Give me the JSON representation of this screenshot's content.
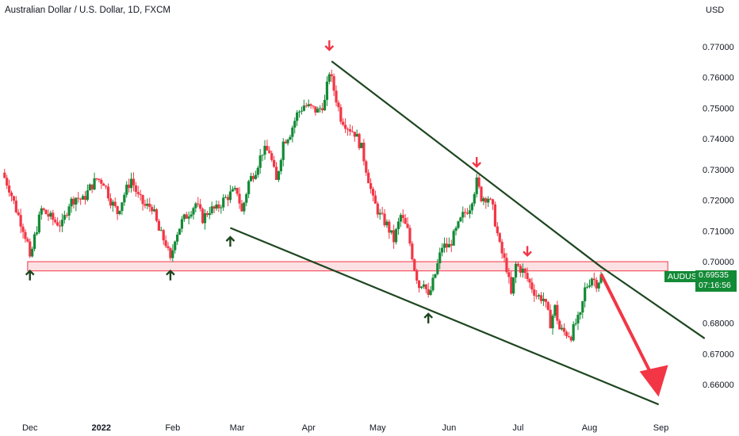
{
  "header": {
    "title": "Australian Dollar / U.S. Dollar, 1D, FXCM",
    "currency": "USD"
  },
  "price_tag": {
    "symbol": "AUDUSD",
    "price": "0.69535",
    "countdown": "07:16:56"
  },
  "colors": {
    "up": "#138a36",
    "down": "#f23645",
    "trendline": "#1e4620",
    "zone_fill": "#f8c9cc",
    "zone_stroke": "#f23645"
  },
  "chart_data": {
    "type": "candlestick",
    "title": "Australian Dollar / U.S. Dollar, 1D, FXCM",
    "y_axis_label": "USD",
    "ylim": [
      0.6515,
      0.7815
    ],
    "y_ticks": [
      "0.77000",
      "0.76000",
      "0.75000",
      "0.74000",
      "0.73000",
      "0.72000",
      "0.71000",
      "0.70000",
      "0.68000",
      "0.67000",
      "0.66000"
    ],
    "x_ticks": [
      "Dec",
      "2022",
      "Feb",
      "Mar",
      "Apr",
      "May",
      "Jun",
      "Jul",
      "Aug",
      "Sep"
    ],
    "x_tick_days": [
      0,
      31,
      62,
      90,
      121,
      151,
      182,
      212,
      243,
      274
    ],
    "x_range_days": [
      -13,
      290
    ],
    "close_series": [
      [
        -12,
        0.729
      ],
      [
        -9,
        0.724
      ],
      [
        -6,
        0.717
      ],
      [
        -3,
        0.711
      ],
      [
        -1,
        0.706
      ],
      [
        0,
        0.7
      ],
      [
        2,
        0.708
      ],
      [
        5,
        0.717
      ],
      [
        8,
        0.715
      ],
      [
        11,
        0.713
      ],
      [
        14,
        0.712
      ],
      [
        17,
        0.719
      ],
      [
        20,
        0.721
      ],
      [
        23,
        0.72
      ],
      [
        26,
        0.724
      ],
      [
        29,
        0.727
      ],
      [
        32,
        0.726
      ],
      [
        35,
        0.72
      ],
      [
        38,
        0.716
      ],
      [
        41,
        0.722
      ],
      [
        44,
        0.727
      ],
      [
        47,
        0.721
      ],
      [
        50,
        0.718
      ],
      [
        53,
        0.718
      ],
      [
        56,
        0.71
      ],
      [
        59,
        0.706
      ],
      [
        61,
        0.7
      ],
      [
        63,
        0.708
      ],
      [
        66,
        0.713
      ],
      [
        69,
        0.716
      ],
      [
        72,
        0.719
      ],
      [
        75,
        0.714
      ],
      [
        78,
        0.717
      ],
      [
        81,
        0.717
      ],
      [
        84,
        0.72
      ],
      [
        87,
        0.722
      ],
      [
        90,
        0.723
      ],
      [
        92,
        0.716
      ],
      [
        95,
        0.726
      ],
      [
        98,
        0.73
      ],
      [
        101,
        0.736
      ],
      [
        104,
        0.736
      ],
      [
        107,
        0.726
      ],
      [
        110,
        0.739
      ],
      [
        113,
        0.742
      ],
      [
        116,
        0.748
      ],
      [
        119,
        0.751
      ],
      [
        122,
        0.75
      ],
      [
        125,
        0.749
      ],
      [
        128,
        0.752
      ],
      [
        130,
        0.762
      ],
      [
        132,
        0.756
      ],
      [
        135,
        0.747
      ],
      [
        138,
        0.744
      ],
      [
        141,
        0.742
      ],
      [
        144,
        0.737
      ],
      [
        147,
        0.727
      ],
      [
        149,
        0.72
      ],
      [
        152,
        0.715
      ],
      [
        155,
        0.712
      ],
      [
        158,
        0.707
      ],
      [
        161,
        0.715
      ],
      [
        164,
        0.71
      ],
      [
        167,
        0.698
      ],
      [
        169,
        0.692
      ],
      [
        171,
        0.694
      ],
      [
        173,
        0.688
      ],
      [
        176,
        0.696
      ],
      [
        179,
        0.705
      ],
      [
        182,
        0.705
      ],
      [
        185,
        0.71
      ],
      [
        188,
        0.715
      ],
      [
        191,
        0.718
      ],
      [
        194,
        0.726
      ],
      [
        196,
        0.721
      ],
      [
        199,
        0.721
      ],
      [
        201,
        0.717
      ],
      [
        204,
        0.705
      ],
      [
        207,
        0.698
      ],
      [
        209,
        0.689
      ],
      [
        211,
        0.699
      ],
      [
        214,
        0.697
      ],
      [
        217,
        0.693
      ],
      [
        220,
        0.689
      ],
      [
        223,
        0.688
      ],
      [
        226,
        0.68
      ],
      [
        228,
        0.685
      ],
      [
        230,
        0.678
      ],
      [
        232,
        0.677
      ],
      [
        235,
        0.676
      ],
      [
        237,
        0.68
      ],
      [
        239,
        0.682
      ],
      [
        241,
        0.691
      ],
      [
        244,
        0.695
      ],
      [
        246,
        0.693
      ],
      [
        248,
        0.695
      ]
    ],
    "horizontal_zone": {
      "from": 0.697,
      "to": 0.7,
      "x_start": -1,
      "x_end": 277
    },
    "trendlines": [
      {
        "points": [
          [
            131,
            0.7653
          ],
          [
            248,
            0.6983
          ],
          [
            293,
            0.675
          ]
        ]
      },
      {
        "points": [
          [
            87,
            0.711
          ],
          [
            273,
            0.6535
          ]
        ]
      }
    ],
    "projection_arrow": {
      "from": [
        248,
        0.696
      ],
      "to": [
        273,
        0.656
      ]
    },
    "markers": [
      {
        "type": "up",
        "day": 0,
        "price": 0.697
      },
      {
        "type": "up",
        "day": 61,
        "price": 0.697
      },
      {
        "type": "up",
        "day": 87,
        "price": 0.708
      },
      {
        "type": "up",
        "day": 173,
        "price": 0.683
      },
      {
        "type": "down",
        "day": 130,
        "price": 0.769
      },
      {
        "type": "down",
        "day": 194,
        "price": 0.731
      },
      {
        "type": "down",
        "day": 216,
        "price": 0.702
      }
    ]
  }
}
